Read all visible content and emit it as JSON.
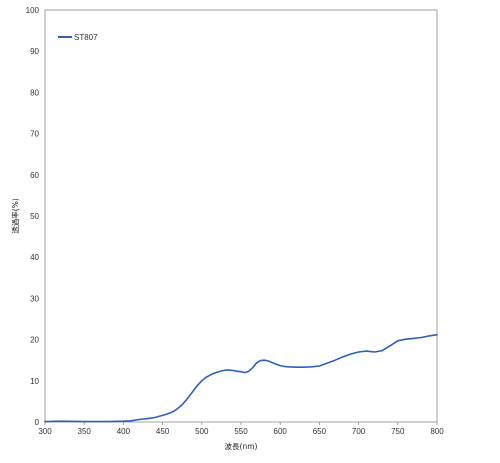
{
  "chart_data": {
    "type": "line",
    "title": "",
    "xlabel": "波長(nm)",
    "ylabel": "透過率(%)",
    "xlim": [
      300,
      800
    ],
    "ylim": [
      0,
      100
    ],
    "x_ticks": [
      300,
      350,
      400,
      450,
      500,
      550,
      600,
      650,
      700,
      750,
      800
    ],
    "y_ticks": [
      0,
      10,
      20,
      30,
      40,
      50,
      60,
      70,
      80,
      90,
      100
    ],
    "grid": false,
    "legend_position": "top-left",
    "series": [
      {
        "name": "ST807",
        "color": "#2f5fbf",
        "x": [
          300,
          320,
          350,
          380,
          400,
          410,
          420,
          430,
          440,
          450,
          460,
          465,
          470,
          475,
          480,
          485,
          490,
          495,
          500,
          505,
          510,
          515,
          520,
          525,
          530,
          535,
          540,
          545,
          550,
          555,
          560,
          565,
          570,
          575,
          580,
          585,
          590,
          595,
          600,
          605,
          610,
          620,
          630,
          640,
          650,
          660,
          670,
          680,
          690,
          700,
          710,
          720,
          730,
          740,
          750,
          760,
          770,
          780,
          790,
          800
        ],
        "y": [
          0.1,
          0.2,
          0.1,
          0.1,
          0.2,
          0.3,
          0.6,
          0.8,
          1.1,
          1.6,
          2.2,
          2.7,
          3.4,
          4.2,
          5.3,
          6.5,
          7.8,
          9.0,
          10.0,
          10.8,
          11.3,
          11.8,
          12.1,
          12.4,
          12.6,
          12.6,
          12.5,
          12.3,
          12.2,
          12.0,
          12.3,
          13.2,
          14.4,
          14.9,
          15.0,
          14.8,
          14.4,
          14.0,
          13.7,
          13.5,
          13.4,
          13.3,
          13.3,
          13.4,
          13.6,
          14.3,
          15.0,
          15.8,
          16.5,
          17.0,
          17.2,
          17.0,
          17.3,
          18.5,
          19.7,
          20.1,
          20.3,
          20.5,
          20.9,
          21.2
        ]
      }
    ]
  }
}
